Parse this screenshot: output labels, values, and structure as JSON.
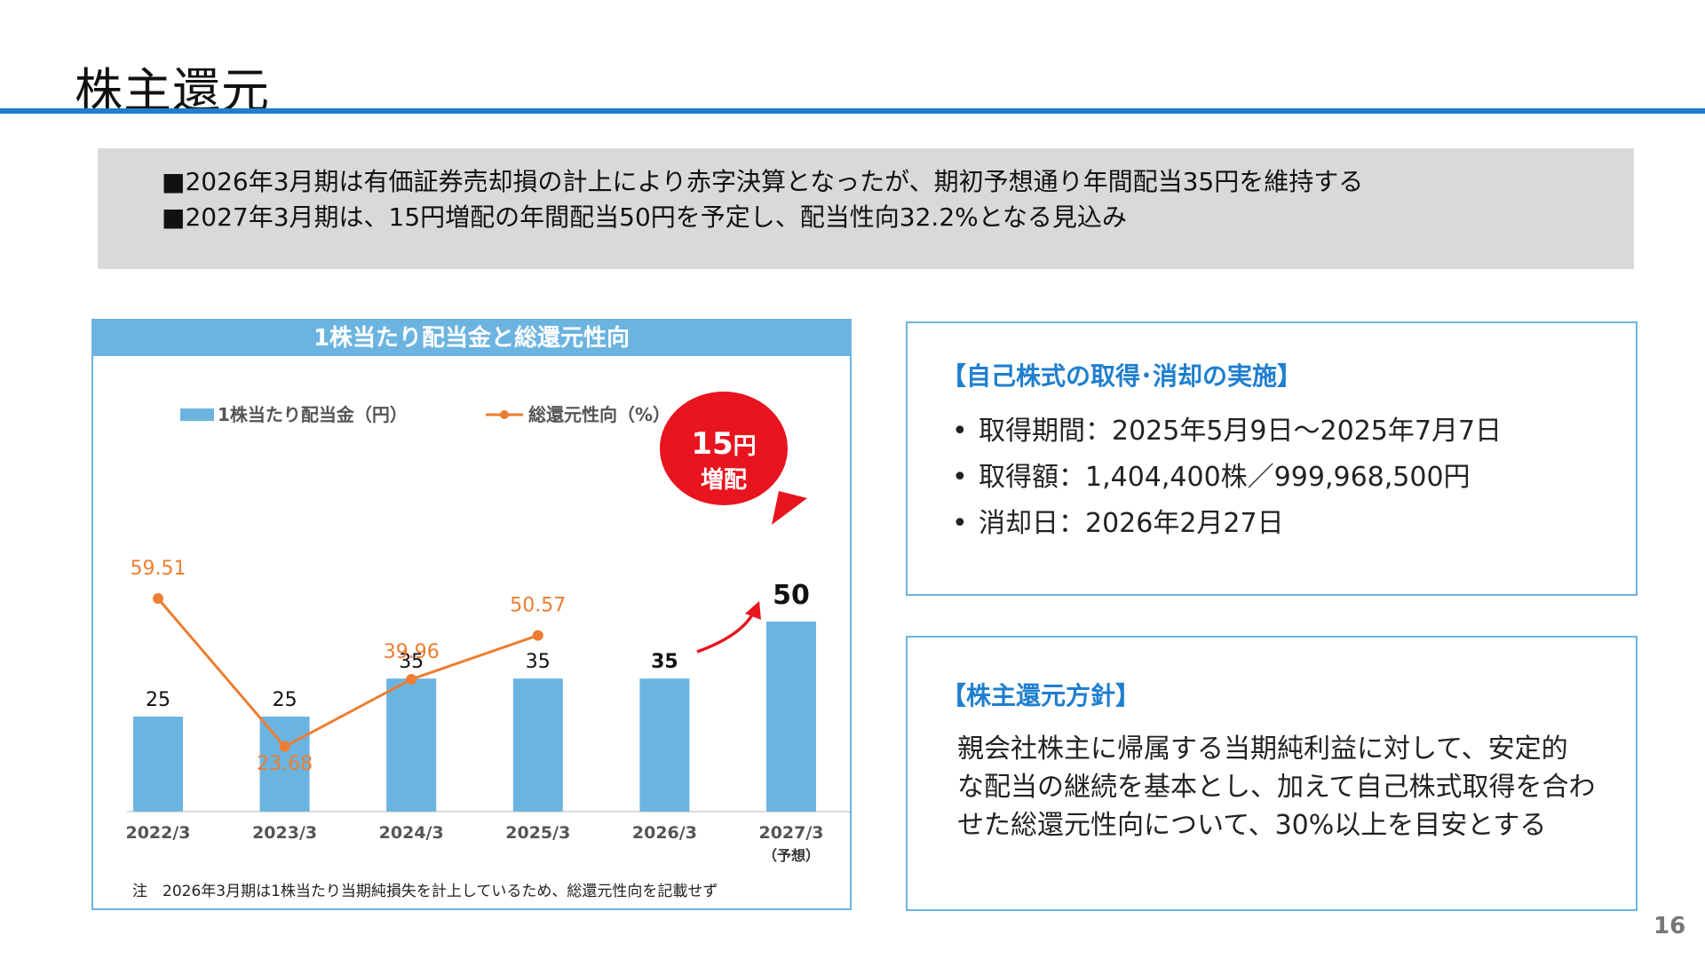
{
  "page": {
    "title": "株主還元",
    "page_number": "16"
  },
  "summary": {
    "line1": "■2026年3月期は有価証券売却損の計上により赤字決算となったが、期初予想通り年間配当35円を維持する",
    "line2": "■2027年3月期は、15円増配の年間配当50円を予定し、配当性向32.2%となる見込み"
  },
  "acquisition": {
    "heading": "【自己株式の取得･消却の実施】",
    "items": [
      "取得期間：2025年5月9日～2025年7月7日",
      "取得額：1,404,400株／999,968,500円",
      "消却日：2026年2月27日"
    ]
  },
  "policy": {
    "heading": "【株主還元方針】",
    "lines": [
      "親会社株主に帰属する当期純利益に対して、安定的",
      "な配当の継続を基本とし、加えて自己株式取得を合わ",
      "せた総還元性向について、30%以上を目安とする"
    ]
  },
  "chart_data": {
    "type": "bar",
    "title": "1株当たり配当金と総還元性向",
    "categories": [
      "2022/3",
      "2023/3",
      "2024/3",
      "2025/3",
      "2026/3",
      "2027/3"
    ],
    "category_sublabels": [
      "",
      "",
      "",
      "",
      "",
      "（予想）"
    ],
    "series": [
      {
        "name": "1株当たり配当金（円）",
        "type": "bar",
        "values": [
          25,
          25,
          35,
          35,
          35,
          50
        ],
        "color": "#6cb4e0"
      },
      {
        "name": "総還元性向（%）",
        "type": "line",
        "values": [
          59.51,
          23.68,
          39.96,
          50.57,
          null,
          null
        ],
        "color": "#ed7d31"
      }
    ],
    "bar_labels": [
      "25",
      "25",
      "35",
      "35",
      "35",
      "50"
    ],
    "line_labels": [
      "59.51",
      "23.68",
      "39.96",
      "50.57"
    ],
    "legend_position": "top",
    "callout": {
      "line1": "15",
      "unit": "円",
      "line2": "増配",
      "color": "#e8141e"
    },
    "arrow_color": "#e8141e",
    "note": "注　2026年3月期は1株当たり当期純損失を計上しているため、総還元性向を記載せず"
  }
}
